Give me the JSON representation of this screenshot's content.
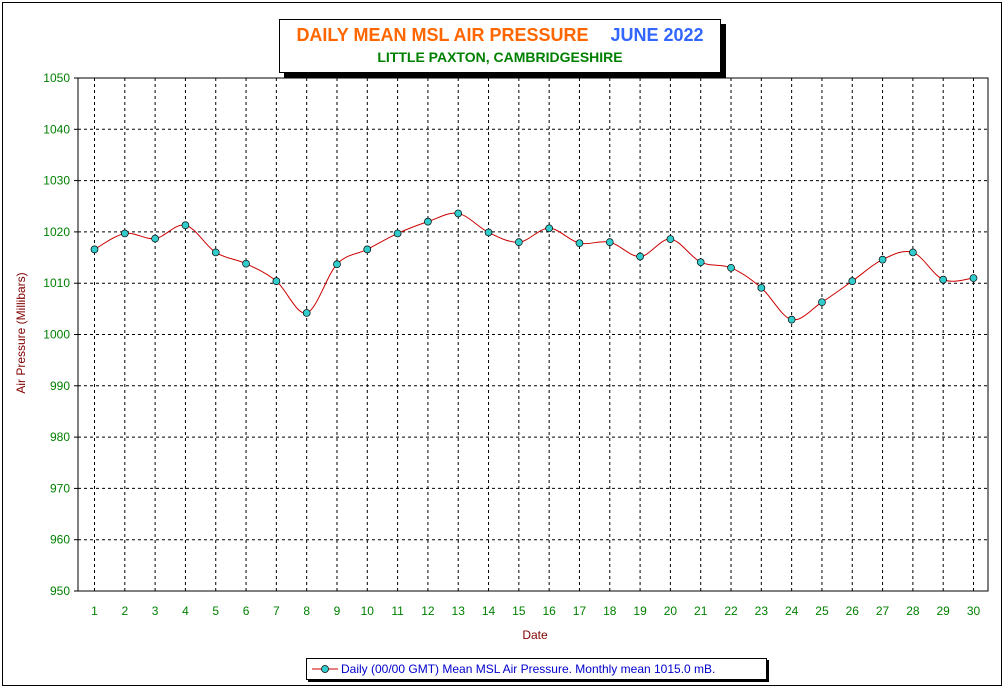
{
  "title": {
    "main": "DAILY MEAN MSL AIR PRESSURE",
    "month": "JUNE 2022",
    "subtitle": "LITTLE PAXTON, CAMBRIDGESHIRE"
  },
  "colors": {
    "title_main": "#ff6600",
    "title_month": "#3366ff",
    "subtitle": "#008000",
    "axis_label": "#800000",
    "tick_label": "#008000",
    "line": "#cc0000",
    "marker_fill": "#33cccc",
    "legend_text": "#0000cc",
    "grid": "#000000"
  },
  "chart_data": {
    "type": "line",
    "xlabel": "Date",
    "ylabel": "Air Pressure (Millibars)",
    "ylim": [
      950,
      1050
    ],
    "yticks": [
      950,
      960,
      970,
      980,
      990,
      1000,
      1010,
      1020,
      1030,
      1040,
      1050
    ],
    "grid": true,
    "grid_style": "dashed",
    "legend_position": "bottom",
    "x": [
      1,
      2,
      3,
      4,
      5,
      6,
      7,
      8,
      9,
      10,
      11,
      12,
      13,
      14,
      15,
      16,
      17,
      18,
      19,
      20,
      21,
      22,
      23,
      24,
      25,
      26,
      27,
      28,
      29,
      30
    ],
    "series": [
      {
        "name": "Daily (00/00 GMT) Mean MSL Air Pressure. Monthly mean 1015.0 mB.",
        "values": [
          1016.6,
          1019.7,
          1018.7,
          1021.3,
          1016.0,
          1013.8,
          1010.4,
          1004.2,
          1013.7,
          1016.6,
          1019.7,
          1022.0,
          1023.6,
          1019.9,
          1018.0,
          1020.7,
          1017.8,
          1018.0,
          1015.2,
          1018.6,
          1014.1,
          1013.0,
          1009.1,
          1002.9,
          1006.3,
          1010.4,
          1014.6,
          1016.0,
          1010.7,
          1011.0
        ]
      }
    ]
  }
}
